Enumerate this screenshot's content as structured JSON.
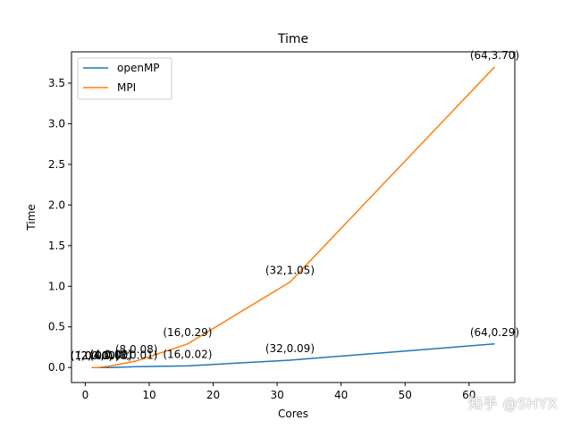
{
  "watermark": "知乎 @SHYX",
  "chart_data": {
    "type": "line",
    "title": "Time",
    "xlabel": "Cores",
    "ylabel": "Time",
    "xlim": [
      -2.15,
      67.15
    ],
    "ylim": [
      -0.185,
      3.885
    ],
    "xticks": [
      0,
      10,
      20,
      30,
      40,
      50,
      60
    ],
    "xtick_labels": [
      "0",
      "10",
      "20",
      "30",
      "40",
      "50",
      "60"
    ],
    "yticks": [
      0.0,
      0.5,
      1.0,
      1.5,
      2.0,
      2.5,
      3.0,
      3.5
    ],
    "ytick_labels": [
      "0.0",
      "0.5",
      "1.0",
      "1.5",
      "2.0",
      "2.5",
      "3.0",
      "3.5"
    ],
    "legend_position": "top-left",
    "grid": false,
    "series": [
      {
        "name": "openMP",
        "color": "#1f77b4",
        "x": [
          1,
          2,
          4,
          8,
          16,
          32,
          64
        ],
        "y": [
          0.0,
          0.0,
          0.0,
          0.01,
          0.02,
          0.09,
          0.29
        ],
        "labels": [
          "(1,0.00)",
          "(2,0.00)",
          "(4,0.00)",
          "(8,0.01)",
          "(16,0.02)",
          "(32,0.09)",
          "(64,0.29)"
        ]
      },
      {
        "name": "MPI",
        "color": "#ff7f0e",
        "x": [
          1,
          2,
          4,
          8,
          16,
          32,
          64
        ],
        "y": [
          0.0,
          0.0,
          0.02,
          0.08,
          0.29,
          1.05,
          3.7
        ],
        "labels": [
          "(1,0.00)",
          "(2,0.00)",
          "(4,0.02)",
          "(8,0.08)",
          "(16,0.29)",
          "(32,1.05)",
          "(64,3.70)"
        ]
      }
    ]
  }
}
